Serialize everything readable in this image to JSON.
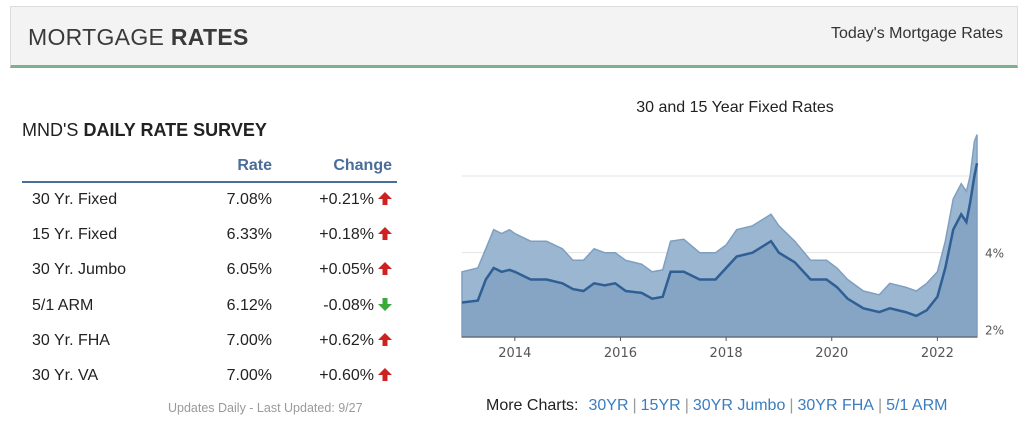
{
  "header": {
    "title_light": "MORTGAGE",
    "title_bold": "RATES",
    "link": "Today's Mortgage Rates"
  },
  "survey": {
    "title_light": "MND'S",
    "title_bold": "DAILY RATE SURVEY",
    "col_rate": "Rate",
    "col_change": "Change",
    "rows": [
      {
        "product": "30 Yr. Fixed",
        "rate": "7.08%",
        "change": "+0.21%",
        "dir": "up"
      },
      {
        "product": "15 Yr. Fixed",
        "rate": "6.33%",
        "change": "+0.18%",
        "dir": "up"
      },
      {
        "product": "30 Yr. Jumbo",
        "rate": "6.05%",
        "change": "+0.05%",
        "dir": "up"
      },
      {
        "product": "5/1 ARM",
        "rate": "6.12%",
        "change": "-0.08%",
        "dir": "down"
      },
      {
        "product": "30 Yr. FHA",
        "rate": "7.00%",
        "change": "+0.62%",
        "dir": "up"
      },
      {
        "product": "30 Yr. VA",
        "rate": "7.00%",
        "change": "+0.60%",
        "dir": "up"
      }
    ],
    "updated": "Updates Daily - Last Updated: 9/27"
  },
  "chart_title": "30 and 15 Year Fixed Rates",
  "chart_data": {
    "type": "area",
    "title": "30 and 15 Year Fixed Rates",
    "xlim": [
      2013.0,
      2022.75
    ],
    "ylim": [
      1.8,
      7.2
    ],
    "x_ticks": [
      "2014",
      "2016",
      "2018",
      "2020",
      "2022"
    ],
    "y_ticks": [
      "2%",
      "4%"
    ],
    "grid": true,
    "colors": {
      "fill_30": "#9ab6d0",
      "fill_15": "#7f9fc0",
      "line_15": "#2f5f94"
    },
    "series": [
      {
        "values": [
          [
            2013.0,
            3.5
          ],
          [
            2013.3,
            3.6
          ],
          [
            2013.45,
            4.1
          ],
          [
            2013.6,
            4.6
          ],
          [
            2013.75,
            4.5
          ],
          [
            2013.9,
            4.6
          ],
          [
            2014.0,
            4.5
          ],
          [
            2014.3,
            4.3
          ],
          [
            2014.6,
            4.3
          ],
          [
            2014.9,
            4.1
          ],
          [
            2015.1,
            3.8
          ],
          [
            2015.3,
            3.8
          ],
          [
            2015.5,
            4.1
          ],
          [
            2015.7,
            4.0
          ],
          [
            2015.9,
            4.0
          ],
          [
            2016.1,
            3.8
          ],
          [
            2016.4,
            3.7
          ],
          [
            2016.6,
            3.5
          ],
          [
            2016.8,
            3.55
          ],
          [
            2016.95,
            4.3
          ],
          [
            2017.2,
            4.35
          ],
          [
            2017.5,
            4.0
          ],
          [
            2017.8,
            4.0
          ],
          [
            2018.0,
            4.2
          ],
          [
            2018.2,
            4.6
          ],
          [
            2018.5,
            4.7
          ],
          [
            2018.85,
            5.0
          ],
          [
            2019.0,
            4.7
          ],
          [
            2019.3,
            4.3
          ],
          [
            2019.6,
            3.8
          ],
          [
            2019.9,
            3.8
          ],
          [
            2020.1,
            3.6
          ],
          [
            2020.3,
            3.3
          ],
          [
            2020.6,
            3.0
          ],
          [
            2020.9,
            2.9
          ],
          [
            2021.1,
            3.2
          ],
          [
            2021.4,
            3.1
          ],
          [
            2021.6,
            3.0
          ],
          [
            2021.8,
            3.2
          ],
          [
            2022.0,
            3.5
          ],
          [
            2022.15,
            4.3
          ],
          [
            2022.3,
            5.4
          ],
          [
            2022.45,
            5.8
          ],
          [
            2022.55,
            5.6
          ],
          [
            2022.62,
            6.0
          ],
          [
            2022.7,
            6.9
          ],
          [
            2022.75,
            7.08
          ]
        ]
      },
      {
        "values": [
          [
            2013.0,
            2.7
          ],
          [
            2013.3,
            2.75
          ],
          [
            2013.45,
            3.3
          ],
          [
            2013.6,
            3.6
          ],
          [
            2013.75,
            3.5
          ],
          [
            2013.9,
            3.55
          ],
          [
            2014.0,
            3.5
          ],
          [
            2014.3,
            3.3
          ],
          [
            2014.6,
            3.3
          ],
          [
            2014.9,
            3.2
          ],
          [
            2015.1,
            3.05
          ],
          [
            2015.3,
            3.0
          ],
          [
            2015.5,
            3.2
          ],
          [
            2015.7,
            3.15
          ],
          [
            2015.9,
            3.2
          ],
          [
            2016.1,
            3.0
          ],
          [
            2016.4,
            2.95
          ],
          [
            2016.6,
            2.8
          ],
          [
            2016.8,
            2.85
          ],
          [
            2016.95,
            3.5
          ],
          [
            2017.2,
            3.5
          ],
          [
            2017.5,
            3.3
          ],
          [
            2017.8,
            3.3
          ],
          [
            2018.0,
            3.6
          ],
          [
            2018.2,
            3.9
          ],
          [
            2018.5,
            4.0
          ],
          [
            2018.85,
            4.3
          ],
          [
            2019.0,
            4.0
          ],
          [
            2019.3,
            3.75
          ],
          [
            2019.6,
            3.3
          ],
          [
            2019.9,
            3.3
          ],
          [
            2020.1,
            3.1
          ],
          [
            2020.3,
            2.8
          ],
          [
            2020.6,
            2.55
          ],
          [
            2020.9,
            2.45
          ],
          [
            2021.1,
            2.55
          ],
          [
            2021.4,
            2.45
          ],
          [
            2021.6,
            2.35
          ],
          [
            2021.8,
            2.5
          ],
          [
            2022.0,
            2.85
          ],
          [
            2022.15,
            3.6
          ],
          [
            2022.3,
            4.6
          ],
          [
            2022.45,
            5.0
          ],
          [
            2022.55,
            4.8
          ],
          [
            2022.62,
            5.3
          ],
          [
            2022.7,
            6.0
          ],
          [
            2022.75,
            6.33
          ]
        ]
      }
    ]
  },
  "more_charts": {
    "label": "More Charts:",
    "links": [
      "30YR",
      "15YR",
      "30YR Jumbo",
      "30YR FHA",
      "5/1 ARM"
    ]
  }
}
